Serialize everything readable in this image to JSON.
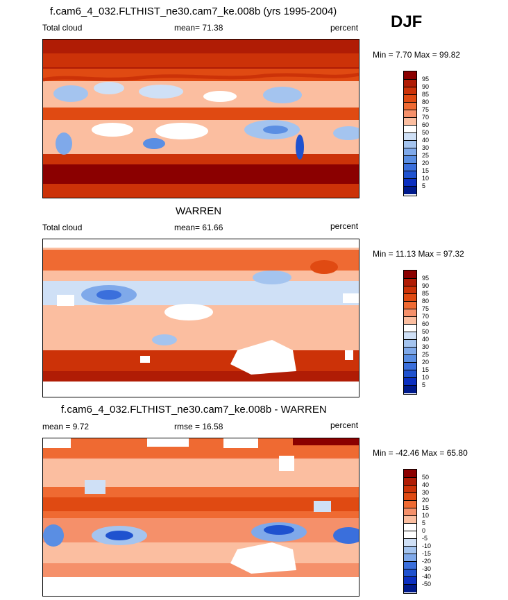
{
  "season": "DJF",
  "panels": [
    {
      "title": "f.cam6_4_032.FLTHIST_ne30.cam7_ke.008b (yrs 1995-2004)",
      "left_label": "Total cloud",
      "center_label": "mean=  71.38",
      "right_label": "percent",
      "minmax": "Min =   7.70 Max =  99.82",
      "levels": [
        "95",
        "90",
        "85",
        "80",
        "75",
        "70",
        "60",
        "50",
        "40",
        "30",
        "25",
        "20",
        "15",
        "10",
        "5"
      ],
      "colors": [
        "#8b0000",
        "#b01c05",
        "#cc3208",
        "#e04a12",
        "#ef6a32",
        "#f5906a",
        "#fbbea0",
        "#ffffff",
        "#cfe0f6",
        "#a4c4ef",
        "#7fa9ea",
        "#5a8ee3",
        "#3a6fdc",
        "#1f52cf",
        "#0b2fc0",
        "#001a8c"
      ]
    },
    {
      "title": "WARREN",
      "left_label": "Total cloud",
      "center_label": "mean=  61.66",
      "right_label": "percent",
      "minmax": "Min =  11.13 Max =  97.32",
      "levels": [
        "95",
        "90",
        "85",
        "80",
        "75",
        "70",
        "60",
        "50",
        "40",
        "30",
        "25",
        "20",
        "15",
        "10",
        "5"
      ],
      "colors": [
        "#8b0000",
        "#b01c05",
        "#cc3208",
        "#e04a12",
        "#ef6a32",
        "#f5906a",
        "#fbbea0",
        "#ffffff",
        "#cfe0f6",
        "#a4c4ef",
        "#7fa9ea",
        "#5a8ee3",
        "#3a6fdc",
        "#1f52cf",
        "#0b2fc0",
        "#001a8c"
      ]
    },
    {
      "title": "f.cam6_4_032.FLTHIST_ne30.cam7_ke.008b - WARREN",
      "left_label": "mean =   9.72",
      "center_label": "rmse =  16.58",
      "right_label": "percent",
      "minmax": "Min = -42.46 Max =  65.80",
      "levels": [
        "50",
        "40",
        "30",
        "20",
        "15",
        "10",
        "5",
        "0",
        "-5",
        "-10",
        "-15",
        "-20",
        "-30",
        "-40",
        "-50"
      ],
      "colors": [
        "#8b0000",
        "#b01c05",
        "#cc3208",
        "#e04a12",
        "#ef6a32",
        "#f5906a",
        "#fbbea0",
        "#ffffff",
        "#ffffff",
        "#cfe0f6",
        "#a4c4ef",
        "#7fa9ea",
        "#3a6fdc",
        "#1f52cf",
        "#0b2fc0",
        "#001a8c"
      ]
    }
  ],
  "chart_data": [
    {
      "type": "heatmap",
      "title": "f.cam6_4_032.FLTHIST_ne30.cam7_ke.008b (yrs 1995-2004)",
      "variable": "Total cloud",
      "units": "percent",
      "mean": 71.38,
      "min": 7.7,
      "max": 99.82,
      "contour_levels": [
        5,
        10,
        15,
        20,
        25,
        30,
        40,
        50,
        60,
        70,
        75,
        80,
        85,
        90,
        95
      ]
    },
    {
      "type": "heatmap",
      "title": "WARREN",
      "variable": "Total cloud",
      "units": "percent",
      "mean": 61.66,
      "min": 11.13,
      "max": 97.32,
      "contour_levels": [
        5,
        10,
        15,
        20,
        25,
        30,
        40,
        50,
        60,
        70,
        75,
        80,
        85,
        90,
        95
      ]
    },
    {
      "type": "heatmap",
      "title": "f.cam6_4_032.FLTHIST_ne30.cam7_ke.008b - WARREN",
      "units": "percent",
      "mean": 9.72,
      "rmse": 16.58,
      "min": -42.46,
      "max": 65.8,
      "contour_levels": [
        -50,
        -40,
        -30,
        -20,
        -15,
        -10,
        -5,
        0,
        5,
        10,
        15,
        20,
        30,
        40,
        50
      ]
    }
  ]
}
